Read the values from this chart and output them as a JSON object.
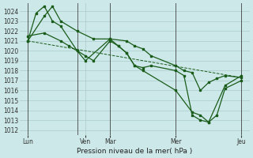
{
  "background_color": "#cce8e8",
  "grid_color": "#aacccc",
  "line_color": "#1a5c1a",
  "marker_color": "#1a5c1a",
  "ylabel_ticks": [
    1012,
    1013,
    1014,
    1015,
    1016,
    1017,
    1018,
    1019,
    1020,
    1021,
    1022,
    1023,
    1024
  ],
  "ylim": [
    1011.5,
    1024.8
  ],
  "xlabel": "Pression niveau de la mer( hPa )",
  "xtick_positions": [
    0.5,
    4.0,
    5.5,
    9.5,
    13.5
  ],
  "xtick_labels": [
    "Lun",
    "Ven",
    "Mar",
    "Mer",
    "Jeu"
  ],
  "vline_positions": [
    0.5,
    3.5,
    5.5,
    9.5,
    13.5
  ],
  "series1_x": [
    0.5,
    1.5,
    2.0,
    2.5,
    3.5,
    4.5,
    5.5,
    6.5,
    7.0,
    7.5,
    8.0,
    9.5,
    10.0,
    10.5,
    11.0,
    11.5,
    12.0,
    12.5,
    13.5
  ],
  "series1_y": [
    1021.0,
    1023.5,
    1024.5,
    1023.0,
    1022.0,
    1021.2,
    1021.2,
    1021.0,
    1020.5,
    1020.2,
    1019.5,
    1018.5,
    1018.0,
    1017.8,
    1016.0,
    1016.8,
    1017.2,
    1017.5,
    1017.3
  ],
  "series2_x": [
    0.5,
    1.0,
    1.5,
    2.0,
    2.5,
    3.5,
    4.0,
    5.5,
    6.0,
    6.5,
    7.0,
    7.5,
    9.5,
    10.5,
    11.0,
    11.5,
    12.5,
    13.5
  ],
  "series2_y": [
    1021.0,
    1023.8,
    1024.5,
    1023.0,
    1022.5,
    1020.0,
    1019.0,
    1021.2,
    1020.5,
    1019.8,
    1018.5,
    1018.0,
    1016.0,
    1013.8,
    1013.5,
    1012.8,
    1016.5,
    1017.5
  ],
  "series3_x": [
    0.5,
    1.5,
    2.5,
    3.0,
    3.5,
    4.0,
    4.5,
    5.5,
    6.0,
    6.5,
    7.0,
    7.5,
    8.0,
    9.5,
    10.0,
    10.5,
    11.0,
    11.5,
    12.0,
    12.5,
    13.5
  ],
  "series3_y": [
    1021.5,
    1021.8,
    1021.0,
    1020.5,
    1020.0,
    1019.5,
    1019.0,
    1021.0,
    1020.5,
    1019.8,
    1018.5,
    1018.3,
    1018.5,
    1018.0,
    1017.5,
    1013.5,
    1013.0,
    1012.8,
    1013.5,
    1016.2,
    1017.0
  ],
  "series4_x": [
    0.5,
    13.5
  ],
  "series4_y": [
    1021.0,
    1017.3
  ],
  "figsize": [
    3.2,
    2.0
  ],
  "dpi": 100
}
